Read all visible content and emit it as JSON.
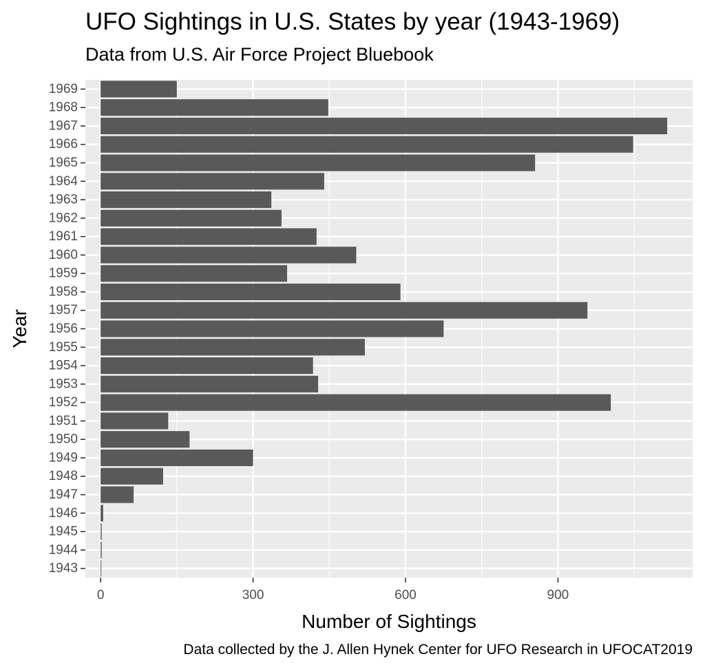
{
  "chart_data": {
    "type": "bar",
    "orientation": "horizontal",
    "title": "UFO Sightings in U.S. States by year (1943-1969)",
    "subtitle": "Data from U.S. Air Force Project Bluebook",
    "caption": "Data collected by the J. Allen Hynek Center for UFO Research in UFOCAT2019",
    "xlabel": "Number of Sightings",
    "ylabel": "Year",
    "xlim": [
      -30,
      1165
    ],
    "xticks": [
      0,
      300,
      600,
      900
    ],
    "xtick_labels": [
      "0",
      "300",
      "600",
      "900"
    ],
    "grid": true,
    "categories": [
      "1943",
      "1944",
      "1945",
      "1946",
      "1947",
      "1948",
      "1949",
      "1950",
      "1951",
      "1952",
      "1953",
      "1954",
      "1955",
      "1956",
      "1957",
      "1958",
      "1959",
      "1960",
      "1961",
      "1962",
      "1963",
      "1964",
      "1965",
      "1966",
      "1967",
      "1968",
      "1969"
    ],
    "values": [
      1,
      2,
      2,
      5,
      65,
      123,
      300,
      175,
      133,
      1004,
      428,
      418,
      520,
      675,
      958,
      590,
      367,
      503,
      425,
      356,
      336,
      440,
      855,
      1048,
      1115,
      448,
      150
    ],
    "colors": {
      "panel": "#ebebeb",
      "grid_major": "#ffffff",
      "bar": "#595959",
      "tick_label": "#4d4d4d"
    }
  }
}
